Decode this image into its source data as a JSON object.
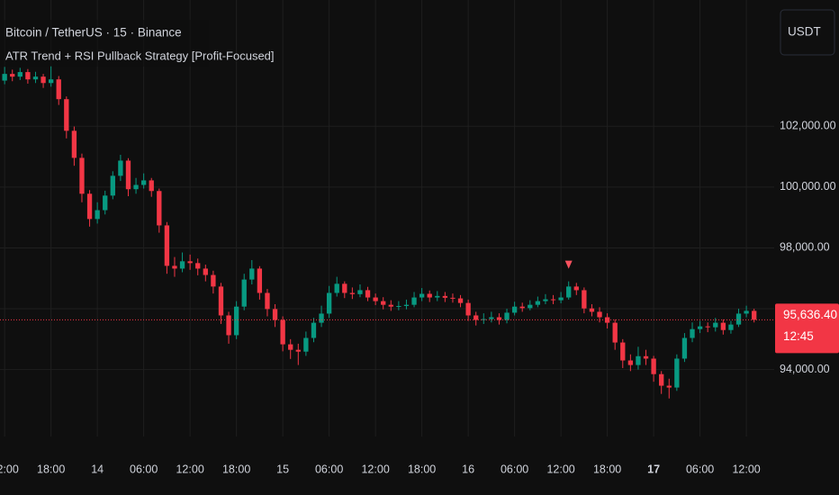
{
  "chart_data": {
    "type": "candlestick",
    "title": "Bitcoin / TetherUS · 15 · Binance",
    "subtitle": "ATR Trend + RSI Pullback Strategy [Profit-Focused]",
    "currency_button": "USDT",
    "up_color": "#089981",
    "down_color": "#f23645",
    "grid": true,
    "open": [
      103500,
      103720,
      103630,
      103780,
      103540,
      103630,
      103420,
      103540,
      102890,
      101850,
      100960,
      99780,
      98950,
      99240,
      99720,
      100370,
      100870,
      99930,
      100070,
      100220,
      99870,
      98740,
      97410,
      97320,
      97560,
      97500,
      97320,
      97110,
      96730,
      95780,
      95130,
      96070,
      96960,
      97320,
      96520,
      95990,
      95630,
      94830,
      94650,
      94590,
      95040,
      95540,
      95840,
      96520,
      96820,
      96520,
      96480,
      96610,
      96370,
      96250,
      96130,
      96070,
      96090,
      96130,
      96370,
      96490,
      96370,
      96420,
      96360,
      96340,
      96190,
      95780,
      95630,
      95660,
      95720,
      95630,
      95870,
      96070,
      96020,
      96130,
      96250,
      96310,
      96280,
      96370,
      96730,
      96610,
      96010,
      95900,
      95720,
      95540,
      94890,
      94300,
      94150,
      94440,
      94360,
      93850,
      93470,
      93410,
      94360,
      95040,
      95330,
      95420,
      95390,
      95540,
      95300,
      95480,
      95840,
      95930
    ],
    "high": [
      103950,
      103860,
      103920,
      103880,
      103790,
      103720,
      103980,
      103650,
      102980,
      101990,
      101100,
      99900,
      99500,
      99880,
      100520,
      101060,
      100950,
      100300,
      100450,
      100300,
      99950,
      98850,
      97700,
      97850,
      97780,
      97650,
      97450,
      97250,
      96850,
      95900,
      96250,
      97150,
      97600,
      97400,
      96650,
      96150,
      95750,
      95000,
      94850,
      95250,
      95700,
      96100,
      96750,
      97050,
      96900,
      96700,
      96800,
      96720,
      96500,
      96380,
      96280,
      96250,
      96300,
      96550,
      96680,
      96600,
      96580,
      96550,
      96500,
      96450,
      96300,
      95900,
      95850,
      95900,
      95850,
      96000,
      96230,
      96200,
      96280,
      96400,
      96480,
      96450,
      96550,
      96900,
      96850,
      96700,
      96150,
      96050,
      95850,
      95650,
      95000,
      94500,
      94750,
      94650,
      94450,
      93950,
      93700,
      94500,
      95200,
      95550,
      95600,
      95550,
      95700,
      95650,
      95600,
      96000,
      96100,
      96000
    ],
    "low": [
      103380,
      103480,
      103520,
      103400,
      103420,
      103260,
      103300,
      102700,
      101600,
      100700,
      99500,
      98700,
      98800,
      99100,
      99600,
      100200,
      99700,
      99780,
      99950,
      99680,
      98500,
      97150,
      97050,
      97200,
      97280,
      97100,
      96900,
      96500,
      95500,
      94850,
      95000,
      95950,
      96800,
      96300,
      95750,
      95400,
      94600,
      94350,
      94150,
      94450,
      94900,
      95400,
      95700,
      96400,
      96350,
      96320,
      96380,
      96250,
      96120,
      95980,
      95930,
      95950,
      95980,
      96050,
      96250,
      96220,
      96250,
      96220,
      96200,
      96050,
      95600,
      95450,
      95500,
      95550,
      95480,
      95520,
      95780,
      95900,
      95950,
      96050,
      96150,
      96150,
      96180,
      96300,
      96450,
      95850,
      95750,
      95550,
      95350,
      94650,
      94050,
      93950,
      94000,
      94150,
      93600,
      93200,
      93050,
      93300,
      94250,
      94900,
      95200,
      95230,
      95250,
      95150,
      95180,
      95400,
      95720,
      95550
    ],
    "close": [
      103720,
      103630,
      103780,
      103540,
      103630,
      103420,
      103540,
      102890,
      101850,
      100960,
      99780,
      98950,
      99240,
      99720,
      100370,
      100870,
      99930,
      100070,
      100220,
      99870,
      98740,
      97410,
      97320,
      97560,
      97500,
      97320,
      97110,
      96730,
      95780,
      95130,
      96070,
      96960,
      97320,
      96520,
      95990,
      95630,
      94830,
      94650,
      94590,
      95040,
      95540,
      95840,
      96520,
      96820,
      96520,
      96480,
      96610,
      96370,
      96250,
      96130,
      96070,
      96090,
      96130,
      96370,
      96490,
      96370,
      96420,
      96360,
      96340,
      96190,
      95780,
      95630,
      95660,
      95720,
      95630,
      95870,
      96070,
      96020,
      96130,
      96250,
      96310,
      96280,
      96370,
      96730,
      96610,
      96010,
      95900,
      95720,
      95540,
      94890,
      94300,
      94150,
      94440,
      94360,
      93850,
      93470,
      93410,
      94360,
      95040,
      95330,
      95420,
      95390,
      95540,
      95300,
      95480,
      95840,
      95930,
      95636.4
    ],
    "sell_signals": [
      73
    ],
    "last_price": {
      "value": 95636.4,
      "label": "95,636.40"
    },
    "countdown": "12:45",
    "xlim": [
      -0.6,
      99.6
    ],
    "xticks": [
      {
        "value": 0,
        "label": "12:00"
      },
      {
        "value": 6,
        "label": "18:00"
      },
      {
        "value": 12,
        "label": "14"
      },
      {
        "value": 18,
        "label": "06:00"
      },
      {
        "value": 24,
        "label": "12:00"
      },
      {
        "value": 30,
        "label": "18:00"
      },
      {
        "value": 36,
        "label": "15"
      },
      {
        "value": 42,
        "label": "06:00"
      },
      {
        "value": 48,
        "label": "12:00"
      },
      {
        "value": 54,
        "label": "18:00"
      },
      {
        "value": 60,
        "label": "16"
      },
      {
        "value": 66,
        "label": "06:00"
      },
      {
        "value": 72,
        "label": "12:00"
      },
      {
        "value": 78,
        "label": "18:00"
      },
      {
        "value": 84,
        "label": "17"
      },
      {
        "value": 90,
        "label": "06:00"
      },
      {
        "value": 96,
        "label": "12:00"
      }
    ],
    "bold_xticks": [
      84
    ],
    "ylim": [
      91800,
      106150
    ],
    "yticks": [
      {
        "value": 94000,
        "label": "94,000.00"
      },
      {
        "value": 96000,
        "label": "96,000.00"
      },
      {
        "value": 98000,
        "label": "98,000.00"
      },
      {
        "value": 100000,
        "label": "100,000.00"
      },
      {
        "value": 102000,
        "label": "102,000.00"
      }
    ]
  }
}
